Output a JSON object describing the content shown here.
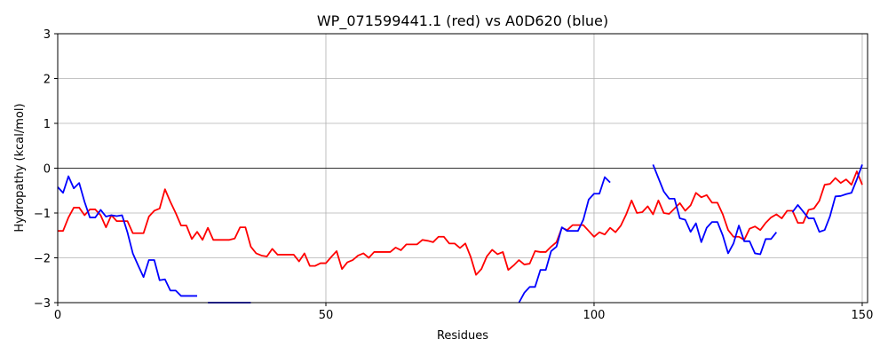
{
  "chart_data": {
    "type": "line",
    "title": "WP_071599441.1 (red) vs A0D620 (blue)",
    "xlabel": "Residues",
    "ylabel": "Hydropathy (kcal/mol)",
    "xlim": [
      0,
      151
    ],
    "ylim": [
      -3,
      3
    ],
    "xticks": [
      0,
      50,
      100,
      150
    ],
    "yticks": [
      -3,
      -2,
      -1,
      0,
      1,
      2,
      3
    ],
    "grid": true,
    "zero_line": true,
    "series": [
      {
        "color": "#ff0000",
        "x": [
          0,
          1,
          2,
          3,
          4,
          5,
          6,
          7,
          8,
          9,
          10,
          11,
          12,
          13,
          14,
          15,
          16,
          17,
          18,
          19,
          20,
          21,
          22,
          23,
          24,
          25,
          26,
          27,
          28,
          29,
          30,
          31,
          32,
          33,
          34,
          35,
          36,
          37,
          38,
          39,
          40,
          41,
          42,
          43,
          44,
          45,
          46,
          47,
          48,
          49,
          50,
          51,
          52,
          53,
          54,
          55,
          56,
          57,
          58,
          59,
          60,
          61,
          62,
          63,
          64,
          65,
          66,
          67,
          68,
          69,
          70,
          71,
          72,
          73,
          74,
          75,
          76,
          77,
          78,
          79,
          80,
          81,
          82,
          83,
          84,
          85,
          86,
          87,
          88,
          89,
          90,
          91,
          92,
          93,
          94,
          95,
          96,
          97,
          98,
          99,
          100,
          101,
          102,
          103,
          104,
          105,
          106,
          107,
          108,
          109,
          110,
          111,
          112,
          113,
          114,
          115,
          116,
          117,
          118,
          119,
          120,
          121,
          122,
          123,
          124,
          125,
          126,
          127,
          128,
          129,
          130,
          131,
          132,
          133,
          134,
          135,
          136,
          137,
          138,
          139,
          140,
          141,
          142,
          143,
          144,
          145,
          146,
          147,
          148,
          149,
          150
        ],
        "y": [
          -1.4,
          -1.4,
          -1.1,
          -0.88,
          -0.88,
          -1.05,
          -0.92,
          -0.92,
          -1.05,
          -1.32,
          -1.05,
          -1.18,
          -1.18,
          -1.18,
          -1.45,
          -1.45,
          -1.45,
          -1.08,
          -0.95,
          -0.9,
          -0.47,
          -0.75,
          -1.0,
          -1.28,
          -1.28,
          -1.58,
          -1.42,
          -1.6,
          -1.33,
          -1.6,
          -1.6,
          -1.6,
          -1.6,
          -1.57,
          -1.32,
          -1.32,
          -1.75,
          -1.9,
          -1.95,
          -1.97,
          -1.8,
          -1.93,
          -1.93,
          -1.93,
          -1.93,
          -2.08,
          -1.9,
          -2.18,
          -2.18,
          -2.12,
          -2.12,
          -1.98,
          -1.85,
          -2.25,
          -2.1,
          -2.05,
          -1.95,
          -1.9,
          -2.0,
          -1.87,
          -1.87,
          -1.87,
          -1.87,
          -1.77,
          -1.83,
          -1.7,
          -1.7,
          -1.7,
          -1.6,
          -1.62,
          -1.65,
          -1.53,
          -1.53,
          -1.68,
          -1.68,
          -1.78,
          -1.68,
          -1.98,
          -2.38,
          -2.25,
          -1.97,
          -1.82,
          -1.92,
          -1.87,
          -2.27,
          -2.17,
          -2.05,
          -2.15,
          -2.13,
          -1.85,
          -1.87,
          -1.87,
          -1.75,
          -1.65,
          -1.33,
          -1.38,
          -1.27,
          -1.27,
          -1.27,
          -1.4,
          -1.53,
          -1.43,
          -1.48,
          -1.33,
          -1.43,
          -1.28,
          -1.03,
          -0.72,
          -1.0,
          -0.98,
          -0.85,
          -1.03,
          -0.72,
          -1.0,
          -1.02,
          -0.9,
          -0.78,
          -0.95,
          -0.83,
          -0.55,
          -0.65,
          -0.6,
          -0.77,
          -0.77,
          -1.03,
          -1.38,
          -1.53,
          -1.53,
          -1.6,
          -1.35,
          -1.3,
          -1.38,
          -1.22,
          -1.1,
          -1.03,
          -1.12,
          -0.95,
          -0.95,
          -1.22,
          -1.22,
          -0.93,
          -0.9,
          -0.73,
          -0.37,
          -0.35,
          -0.22,
          -0.33,
          -0.25,
          -0.37,
          -0.07,
          -0.37
        ]
      },
      {
        "color": "#0000ff",
        "segments": [
          {
            "x": [
              0,
              1,
              2,
              3,
              4,
              5,
              6,
              7,
              8,
              9,
              10,
              11,
              12,
              13,
              14,
              15,
              16,
              17,
              18,
              19,
              20,
              21,
              22,
              23,
              24,
              25,
              26
            ],
            "y": [
              -0.42,
              -0.55,
              -0.18,
              -0.45,
              -0.33,
              -0.75,
              -1.1,
              -1.1,
              -0.93,
              -1.08,
              -1.05,
              -1.07,
              -1.05,
              -1.43,
              -1.9,
              -2.17,
              -2.43,
              -2.05,
              -2.05,
              -2.5,
              -2.48,
              -2.73,
              -2.73,
              -2.85,
              -2.85,
              -2.85,
              -2.85
            ]
          },
          {
            "x": [
              28,
              29,
              30,
              31,
              32,
              33,
              34,
              35,
              36
            ],
            "y": [
              -3.0,
              -3.0,
              -3.0,
              -3.0,
              -3.0,
              -3.0,
              -3.0,
              -3.0,
              -3.0
            ]
          },
          {
            "x": [
              86,
              87,
              88,
              89,
              90,
              91,
              92,
              93,
              94,
              95,
              96,
              97,
              98,
              99,
              100,
              101,
              102,
              103
            ],
            "y": [
              -3.0,
              -2.78,
              -2.65,
              -2.65,
              -2.27,
              -2.27,
              -1.85,
              -1.75,
              -1.32,
              -1.4,
              -1.4,
              -1.4,
              -1.15,
              -0.7,
              -0.57,
              -0.57,
              -0.2,
              -0.32
            ]
          },
          {
            "x": [
              111,
              112,
              113,
              114,
              115,
              116,
              117,
              118,
              119,
              120,
              121,
              122,
              123,
              124,
              125,
              126,
              127,
              128,
              129,
              130,
              131,
              132,
              133,
              134
            ],
            "y": [
              0.08,
              -0.22,
              -0.52,
              -0.68,
              -0.68,
              -1.12,
              -1.15,
              -1.42,
              -1.23,
              -1.65,
              -1.33,
              -1.2,
              -1.2,
              -1.5,
              -1.9,
              -1.68,
              -1.28,
              -1.63,
              -1.63,
              -1.9,
              -1.92,
              -1.58,
              -1.58,
              -1.43
            ]
          },
          {
            "x": [
              137,
              138,
              139,
              140,
              141,
              142,
              143,
              144,
              145,
              146,
              147,
              148,
              149,
              150
            ],
            "y": [
              -0.98,
              -0.82,
              -0.97,
              -1.12,
              -1.12,
              -1.42,
              -1.38,
              -1.07,
              -0.63,
              -0.62,
              -0.58,
              -0.55,
              -0.25,
              0.08
            ]
          }
        ]
      }
    ]
  }
}
